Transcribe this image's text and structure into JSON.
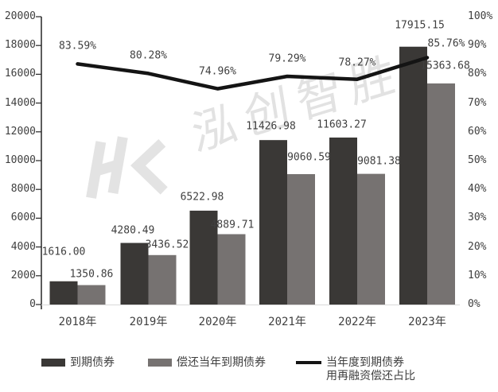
{
  "chart_data": {
    "type": "bar+line",
    "categories": [
      "2018年",
      "2019年",
      "2020年",
      "2021年",
      "2022年",
      "2023年"
    ],
    "series": [
      {
        "name": "到期债券",
        "type": "bar",
        "axis": "left",
        "color": "#3a3836",
        "values": [
          1616.0,
          4280.49,
          6522.98,
          11426.98,
          11603.27,
          17915.15
        ],
        "labels": [
          "1616.00",
          "4280.49",
          "6522.98",
          "11426.98",
          "11603.27",
          "17915.15"
        ]
      },
      {
        "name": "偿还当年到期债券",
        "type": "bar",
        "axis": "left",
        "color": "#767271",
        "values": [
          1350.86,
          3436.52,
          4889.71,
          9060.59,
          9081.38,
          15363.68
        ],
        "labels": [
          "1350.86",
          "3436.52",
          "4889.71",
          "9060.59",
          "9081.38",
          "15363.68"
        ]
      },
      {
        "name": "当年度到期债券用再融资偿还占比",
        "type": "line",
        "axis": "right",
        "color": "#141414",
        "values": [
          83.59,
          80.28,
          74.96,
          79.29,
          78.27,
          85.76
        ],
        "labels": [
          "83.59%",
          "80.28%",
          "74.96%",
          "79.29%",
          "78.27%",
          "85.76%"
        ]
      }
    ],
    "left_axis": {
      "min": 0,
      "max": 20000,
      "step": 2000,
      "ticks": [
        "0",
        "2000",
        "4000",
        "6000",
        "8000",
        "10000",
        "12000",
        "14000",
        "16000",
        "18000",
        "20000"
      ]
    },
    "right_axis": {
      "min": 0,
      "max": 100,
      "step": 10,
      "ticks": [
        "0%",
        "10%",
        "20%",
        "30%",
        "40%",
        "50%",
        "60%",
        "70%",
        "80%",
        "90%",
        "100%"
      ]
    },
    "grid": false,
    "legend_position": "bottom",
    "legend": [
      {
        "label": "到期债券",
        "swatch": "bar",
        "color": "#3a3836"
      },
      {
        "label": "偿还当年到期债券",
        "swatch": "bar",
        "color": "#767271"
      },
      {
        "label": "当年度到期债券",
        "label2": "用再融资偿还占比",
        "swatch": "line",
        "color": "#141414"
      }
    ],
    "watermark": {
      "text": "泓创智胜",
      "logo": "hc-cube-logo",
      "color": "#e2e2e2"
    }
  }
}
